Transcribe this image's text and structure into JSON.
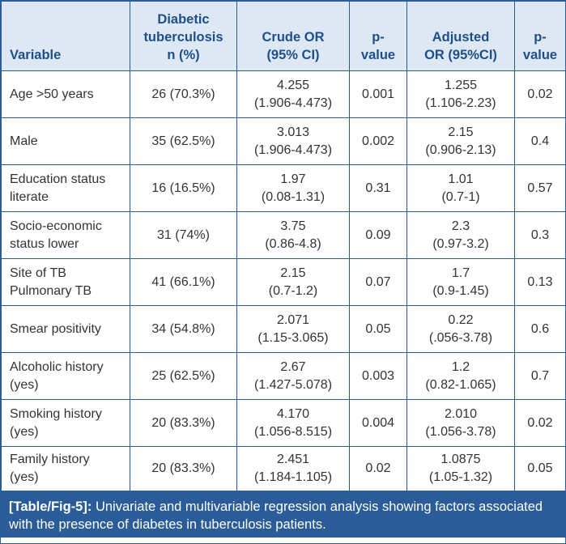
{
  "table": {
    "headers": [
      "Variable",
      "Diabetic\ntuberculosis\nn (%)",
      "Crude OR\n(95% CI)",
      "p-\nvalue",
      "Adjusted\nOR (95%CI)",
      "p-\nvalue"
    ],
    "rows": [
      [
        "Age >50 years",
        "26 (70.3%)",
        "4.255\n(1.906-4.473)",
        "0.001",
        "1.255\n(1.106-2.23)",
        "0.02"
      ],
      [
        "Male",
        "35 (62.5%)",
        "3.013\n(1.906-4.473)",
        "0.002",
        "2.15\n(0.906-2.13)",
        "0.4"
      ],
      [
        "Education status\nliterate",
        "16 (16.5%)",
        "1.97\n(0.08-1.31)",
        "0.31",
        "1.01\n(0.7-1)",
        "0.57"
      ],
      [
        "Socio-economic\nstatus lower",
        "31 (74%)",
        "3.75\n(0.86-4.8)",
        "0.09",
        "2.3\n(0.97-3.2)",
        "0.3"
      ],
      [
        "Site of TB\nPulmonary TB",
        "41 (66.1%)",
        "2.15\n(0.7-1.2)",
        "0.07",
        "1.7\n(0.9-1.45)",
        "0.13"
      ],
      [
        "Smear positivity",
        "34 (54.8%)",
        "2.071\n(1.15-3.065)",
        "0.05",
        "0.22\n(.056-3.78)",
        "0.6"
      ],
      [
        "Alcoholic history\n(yes)",
        "25 (62.5%)",
        "2.67\n(1.427-5.078)",
        "0.003",
        "1.2\n(0.82-1.065)",
        "0.7"
      ],
      [
        "Smoking history\n(yes)",
        "20 (83.3%)",
        "4.170\n(1.056-8.515)",
        "0.004",
        "2.010\n(1.056-3.78)",
        "0.02"
      ],
      [
        "Family history\n(yes)",
        "20 (83.3%)",
        "2.451\n(1.184-1.105)",
        "0.02",
        "1.0875\n(1.05-1.32)",
        "0.05"
      ]
    ]
  },
  "caption": {
    "label": "[Table/Fig-5]:",
    "text": "Univariate and multivariable regression analysis showing factors associated with the presence of diabetes in tuberculosis patients."
  },
  "colors": {
    "border": "#2a5c9a",
    "header_bg": "#dde8f4",
    "header_text": "#1f4f8a",
    "caption_bg": "#2a5c9a"
  }
}
